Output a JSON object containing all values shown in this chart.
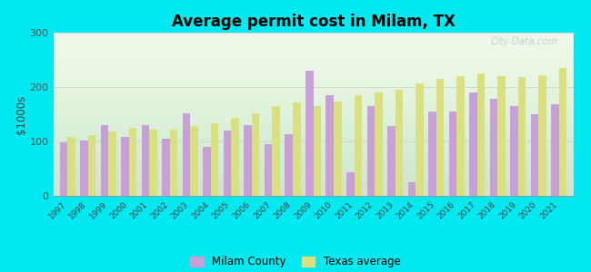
{
  "title": "Average permit cost in Milam, TX",
  "ylabel": "$1000s",
  "background_outer": "#00e8f0",
  "years": [
    1997,
    1998,
    1999,
    2000,
    2001,
    2002,
    2003,
    2004,
    2005,
    2006,
    2007,
    2008,
    2009,
    2010,
    2011,
    2012,
    2013,
    2014,
    2015,
    2016,
    2017,
    2018,
    2019,
    2020,
    2021
  ],
  "milam": [
    98,
    101,
    130,
    108,
    130,
    105,
    152,
    90,
    120,
    130,
    95,
    113,
    230,
    185,
    43,
    165,
    128,
    25,
    155,
    155,
    190,
    178,
    165,
    150,
    168
  ],
  "texas": [
    108,
    112,
    118,
    125,
    122,
    122,
    128,
    133,
    143,
    152,
    165,
    172,
    165,
    173,
    185,
    190,
    195,
    207,
    215,
    220,
    225,
    220,
    218,
    222,
    235
  ],
  "milam_color": "#c8a0d8",
  "texas_color": "#d8e080",
  "ylim": [
    0,
    300
  ],
  "yticks": [
    0,
    100,
    200,
    300
  ],
  "bar_width": 0.38,
  "watermark": "City-Data.com"
}
